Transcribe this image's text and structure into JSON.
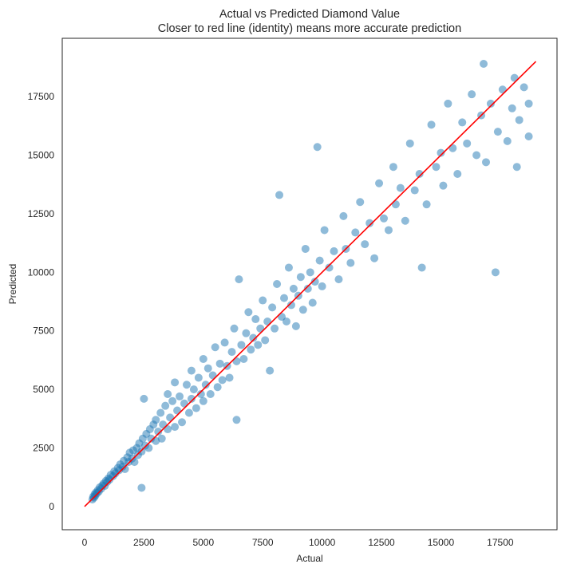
{
  "chart_data": {
    "type": "scatter",
    "title": "Actual vs Predicted Diamond Value",
    "subtitle": "Closer to red line (identity) means more accurate prediction",
    "xlabel": "Actual",
    "ylabel": "Predicted",
    "xlim": [
      -940,
      19890
    ],
    "ylim": [
      -990,
      19990
    ],
    "xticks": [
      0,
      2500,
      5000,
      7500,
      10000,
      12500,
      15000,
      17500
    ],
    "yticks": [
      0,
      2500,
      5000,
      7500,
      10000,
      12500,
      15000,
      17500
    ],
    "grid": false,
    "point_color": "#1f77b4",
    "point_alpha": 0.5,
    "identity_line": {
      "color": "#ff0000",
      "from": [
        0,
        0
      ],
      "to": [
        19000,
        19000
      ]
    },
    "points": [
      [
        330,
        300
      ],
      [
        360,
        420
      ],
      [
        400,
        380
      ],
      [
        420,
        520
      ],
      [
        450,
        460
      ],
      [
        480,
        600
      ],
      [
        520,
        560
      ],
      [
        560,
        700
      ],
      [
        600,
        640
      ],
      [
        640,
        820
      ],
      [
        700,
        760
      ],
      [
        750,
        900
      ],
      [
        800,
        980
      ],
      [
        850,
        880
      ],
      [
        900,
        1100
      ],
      [
        950,
        1050
      ],
      [
        1000,
        1200
      ],
      [
        1050,
        1150
      ],
      [
        1100,
        1350
      ],
      [
        1200,
        1300
      ],
      [
        1250,
        1500
      ],
      [
        1300,
        1420
      ],
      [
        1400,
        1650
      ],
      [
        1450,
        1550
      ],
      [
        1500,
        1800
      ],
      [
        1600,
        1700
      ],
      [
        1650,
        1950
      ],
      [
        1700,
        1600
      ],
      [
        1800,
        2100
      ],
      [
        1850,
        1900
      ],
      [
        1900,
        2300
      ],
      [
        2000,
        2050
      ],
      [
        2050,
        2400
      ],
      [
        2100,
        1900
      ],
      [
        2200,
        2500
      ],
      [
        2250,
        2200
      ],
      [
        2300,
        2700
      ],
      [
        2400,
        800
      ],
      [
        2400,
        2350
      ],
      [
        2450,
        2900
      ],
      [
        2500,
        4600
      ],
      [
        2550,
        2600
      ],
      [
        2600,
        3100
      ],
      [
        2700,
        2500
      ],
      [
        2750,
        3300
      ],
      [
        2800,
        2900
      ],
      [
        2900,
        3500
      ],
      [
        3000,
        2800
      ],
      [
        3000,
        3700
      ],
      [
        3100,
        3200
      ],
      [
        3200,
        4000
      ],
      [
        3250,
        2900
      ],
      [
        3300,
        3500
      ],
      [
        3400,
        4300
      ],
      [
        3500,
        3300
      ],
      [
        3500,
        4800
      ],
      [
        3600,
        3800
      ],
      [
        3700,
        4500
      ],
      [
        3800,
        3400
      ],
      [
        3800,
        5300
      ],
      [
        3900,
        4100
      ],
      [
        4000,
        4700
      ],
      [
        4100,
        3600
      ],
      [
        4200,
        4400
      ],
      [
        4300,
        5200
      ],
      [
        4400,
        4000
      ],
      [
        4500,
        5800
      ],
      [
        4500,
        4600
      ],
      [
        4600,
        5000
      ],
      [
        4700,
        4200
      ],
      [
        4800,
        5500
      ],
      [
        4900,
        4800
      ],
      [
        5000,
        6300
      ],
      [
        5000,
        4500
      ],
      [
        5100,
        5200
      ],
      [
        5200,
        5900
      ],
      [
        5300,
        4800
      ],
      [
        5400,
        5600
      ],
      [
        5500,
        6800
      ],
      [
        5600,
        5100
      ],
      [
        5700,
        6100
      ],
      [
        5800,
        5400
      ],
      [
        5900,
        7000
      ],
      [
        6000,
        6000
      ],
      [
        6100,
        5500
      ],
      [
        6200,
        6600
      ],
      [
        6300,
        7600
      ],
      [
        6400,
        3700
      ],
      [
        6400,
        6200
      ],
      [
        6500,
        9700
      ],
      [
        6600,
        6900
      ],
      [
        6700,
        6300
      ],
      [
        6800,
        7400
      ],
      [
        6900,
        8300
      ],
      [
        7000,
        6700
      ],
      [
        7100,
        7200
      ],
      [
        7200,
        8000
      ],
      [
        7300,
        6900
      ],
      [
        7400,
        7600
      ],
      [
        7500,
        8800
      ],
      [
        7600,
        7100
      ],
      [
        7700,
        7900
      ],
      [
        7800,
        5800
      ],
      [
        7900,
        8500
      ],
      [
        8000,
        7600
      ],
      [
        8100,
        9500
      ],
      [
        8200,
        13300
      ],
      [
        8300,
        8100
      ],
      [
        8400,
        8900
      ],
      [
        8500,
        7900
      ],
      [
        8600,
        10200
      ],
      [
        8700,
        8600
      ],
      [
        8800,
        9300
      ],
      [
        8900,
        7700
      ],
      [
        9000,
        9000
      ],
      [
        9100,
        9800
      ],
      [
        9200,
        8400
      ],
      [
        9300,
        11000
      ],
      [
        9400,
        9300
      ],
      [
        9500,
        10000
      ],
      [
        9600,
        8700
      ],
      [
        9700,
        9600
      ],
      [
        9800,
        15350
      ],
      [
        9900,
        10500
      ],
      [
        10000,
        9400
      ],
      [
        10100,
        11800
      ],
      [
        10300,
        10200
      ],
      [
        10500,
        10900
      ],
      [
        10700,
        9700
      ],
      [
        10900,
        12400
      ],
      [
        11000,
        11000
      ],
      [
        11200,
        10400
      ],
      [
        11400,
        11700
      ],
      [
        11600,
        13000
      ],
      [
        11800,
        11200
      ],
      [
        12000,
        12100
      ],
      [
        12200,
        10600
      ],
      [
        12400,
        13800
      ],
      [
        12600,
        12300
      ],
      [
        12800,
        11800
      ],
      [
        13000,
        14500
      ],
      [
        13100,
        12900
      ],
      [
        13300,
        13600
      ],
      [
        13500,
        12200
      ],
      [
        13700,
        15500
      ],
      [
        13900,
        13500
      ],
      [
        14100,
        14200
      ],
      [
        14200,
        10200
      ],
      [
        14400,
        12900
      ],
      [
        14600,
        16300
      ],
      [
        14800,
        14500
      ],
      [
        15000,
        15100
      ],
      [
        15100,
        13700
      ],
      [
        15300,
        17200
      ],
      [
        15500,
        15300
      ],
      [
        15700,
        14200
      ],
      [
        15900,
        16400
      ],
      [
        16100,
        15500
      ],
      [
        16300,
        17600
      ],
      [
        16500,
        15000
      ],
      [
        16700,
        16700
      ],
      [
        16800,
        18900
      ],
      [
        16900,
        14700
      ],
      [
        17100,
        17200
      ],
      [
        17300,
        10000
      ],
      [
        17400,
        16000
      ],
      [
        17600,
        17800
      ],
      [
        17800,
        15600
      ],
      [
        18000,
        17000
      ],
      [
        18100,
        18300
      ],
      [
        18200,
        14500
      ],
      [
        18300,
        16500
      ],
      [
        18500,
        17900
      ],
      [
        18700,
        15800
      ],
      [
        18700,
        17200
      ]
    ]
  }
}
